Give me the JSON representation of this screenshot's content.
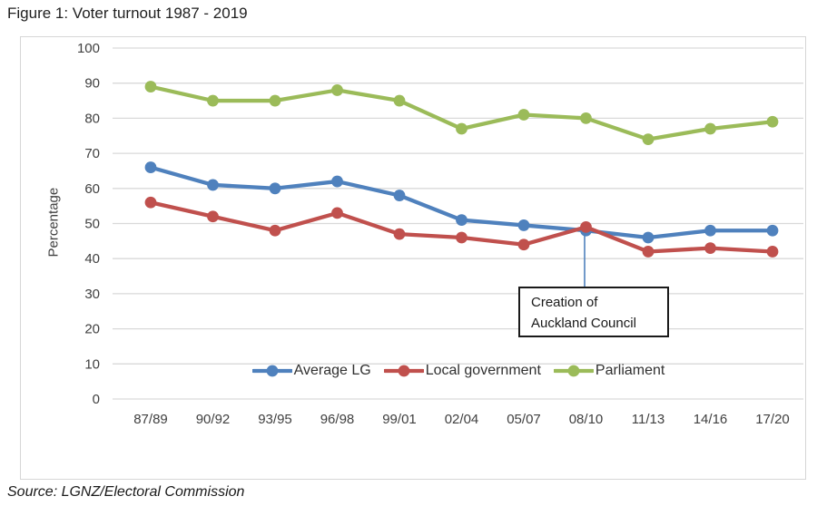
{
  "page": {
    "title": "Figure 1: Voter turnout 1987 - 2019",
    "source": "Source: LGNZ/Electoral Commission"
  },
  "chart_data": {
    "type": "line",
    "title": "Figure 1: Voter turnout 1987 - 2019",
    "xlabel": "",
    "ylabel": "Percentage",
    "ylim": [
      0,
      100
    ],
    "yticks": [
      0,
      10,
      20,
      30,
      40,
      50,
      60,
      70,
      80,
      90,
      100
    ],
    "grid": true,
    "legend_position": "bottom",
    "categories": [
      "87/89",
      "90/92",
      "93/95",
      "96/98",
      "99/01",
      "02/04",
      "05/07",
      "08/10",
      "11/13",
      "14/16",
      "17/20"
    ],
    "series": [
      {
        "name": "Average LG",
        "color": "#4F81BD",
        "values": [
          66,
          61,
          60,
          62,
          58,
          51,
          49.5,
          48,
          46,
          48,
          48
        ]
      },
      {
        "name": "Local government",
        "color": "#C0504D",
        "values": [
          56,
          52,
          48,
          53,
          47,
          46,
          44,
          49,
          42,
          43,
          42
        ]
      },
      {
        "name": "Parliament",
        "color": "#9BBB59",
        "values": [
          89,
          85,
          85,
          88,
          85,
          77,
          81,
          80,
          74,
          77,
          79
        ]
      }
    ],
    "annotation": {
      "lines": [
        "Creation of",
        "Auckland Council"
      ],
      "target_category": "08/10",
      "target_series": "Average LG",
      "target_value": 48,
      "callout_color": "#4F81BD"
    },
    "grid_color": "#d9d9d9",
    "axis_text_color": "#404040"
  }
}
